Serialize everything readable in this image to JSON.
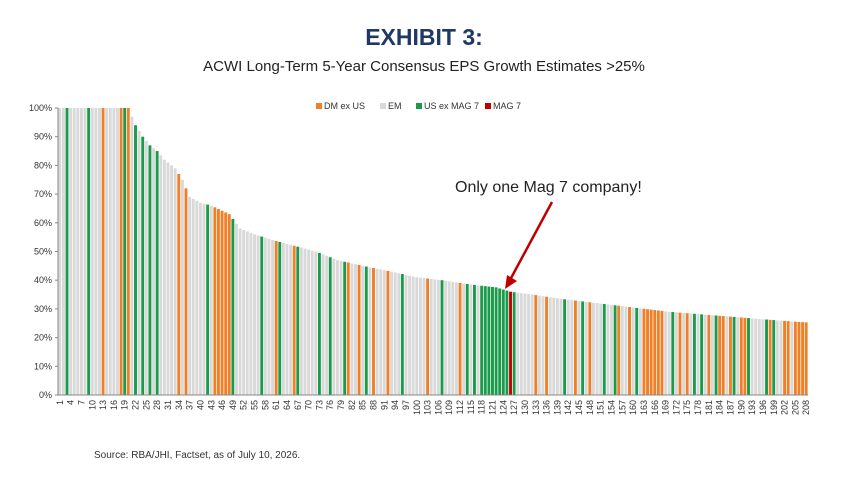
{
  "header": {
    "exhibit": "EXHIBIT 3:",
    "subtitle": "ACWI Long-Term 5-Year Consensus EPS Growth Estimates >25%"
  },
  "source": "Source: RBA/JHI, Factset, as of July 10, 2026.",
  "annotation": "Only one Mag 7 company!",
  "colors": {
    "DM ex US": "#f07f27",
    "EM": "#d9d9d9",
    "US ex MAG 7": "#1a9a4b",
    "MAG 7": "#c00000",
    "arrow": "#c00000"
  },
  "chart_data": {
    "type": "bar",
    "title": "ACWI Long-Term 5-Year Consensus EPS Growth Estimates >25%",
    "xlabel": "",
    "ylabel": "",
    "ylim": [
      0,
      100
    ],
    "y_tick_labels": [
      "0%",
      "10%",
      "20%",
      "30%",
      "40%",
      "50%",
      "60%",
      "70%",
      "80%",
      "90%",
      "100%"
    ],
    "x_tick_every": 3,
    "legend": [
      "DM ex US",
      "EM",
      "US ex MAG 7",
      "MAG 7"
    ],
    "legend_position": "top",
    "grid": false,
    "anchors": [
      [
        1,
        100
      ],
      [
        20,
        100
      ],
      [
        21,
        97
      ],
      [
        22,
        94
      ],
      [
        24,
        90
      ],
      [
        26,
        87
      ],
      [
        28,
        85
      ],
      [
        30,
        82
      ],
      [
        33,
        79
      ],
      [
        35,
        75
      ],
      [
        37,
        69
      ],
      [
        40,
        67
      ],
      [
        43,
        66
      ],
      [
        48,
        63
      ],
      [
        51,
        58
      ],
      [
        55,
        56
      ],
      [
        60,
        54
      ],
      [
        66,
        52
      ],
      [
        72,
        50
      ],
      [
        78,
        47
      ],
      [
        85,
        45
      ],
      [
        93,
        43
      ],
      [
        100,
        41
      ],
      [
        107,
        40
      ],
      [
        115,
        38.5
      ],
      [
        122,
        37.5
      ],
      [
        126,
        36
      ],
      [
        132,
        35
      ],
      [
        140,
        33.5
      ],
      [
        150,
        32
      ],
      [
        160,
        30.5
      ],
      [
        170,
        29
      ],
      [
        180,
        28
      ],
      [
        190,
        27
      ],
      [
        200,
        26
      ],
      [
        208,
        25.3
      ]
    ],
    "groups": [
      {
        "name": "DM ex US",
        "ids": [
          13,
          18,
          20,
          34,
          36,
          44,
          45,
          46,
          47,
          48,
          61,
          66,
          81,
          84,
          88,
          92,
          103,
          112,
          116,
          119,
          133,
          136,
          144,
          148,
          156,
          159,
          163,
          164,
          165,
          166,
          167,
          168,
          173,
          175,
          181,
          184,
          185,
          187,
          190,
          191,
          198,
          202,
          203,
          205,
          206,
          207,
          208
        ]
      },
      {
        "name": "US ex MAG 7",
        "ids": [
          3,
          9,
          19,
          22,
          24,
          26,
          28,
          42,
          49,
          57,
          62,
          67,
          73,
          76,
          80,
          86,
          96,
          107,
          114,
          116,
          118,
          119,
          120,
          121,
          122,
          123,
          124,
          125,
          127,
          141,
          146,
          152,
          155,
          161,
          171,
          177,
          179,
          183,
          188,
          192,
          197,
          199
        ]
      },
      {
        "name": "MAG 7",
        "ids": [
          126
        ]
      }
    ],
    "count": 208
  }
}
